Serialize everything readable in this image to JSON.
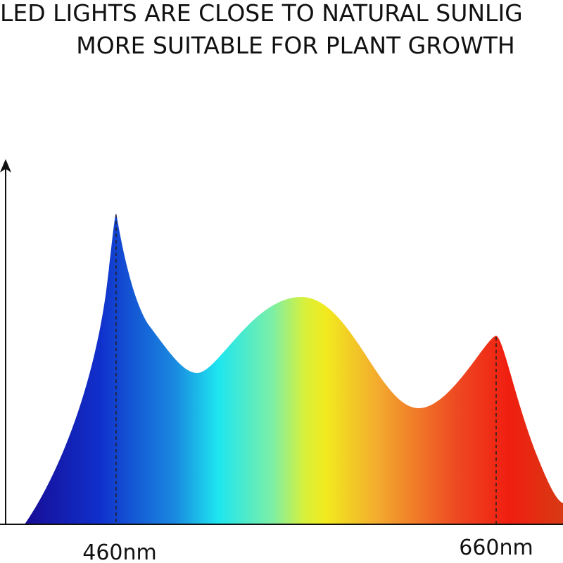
{
  "header": {
    "line1": "LED LIGHTS ARE CLOSE TO NATURAL SUNLIG",
    "line2": "MORE SUITABLE FOR PLANT GROWTH"
  },
  "axis": {
    "labels": [
      "460nm",
      "660nm"
    ]
  }
}
